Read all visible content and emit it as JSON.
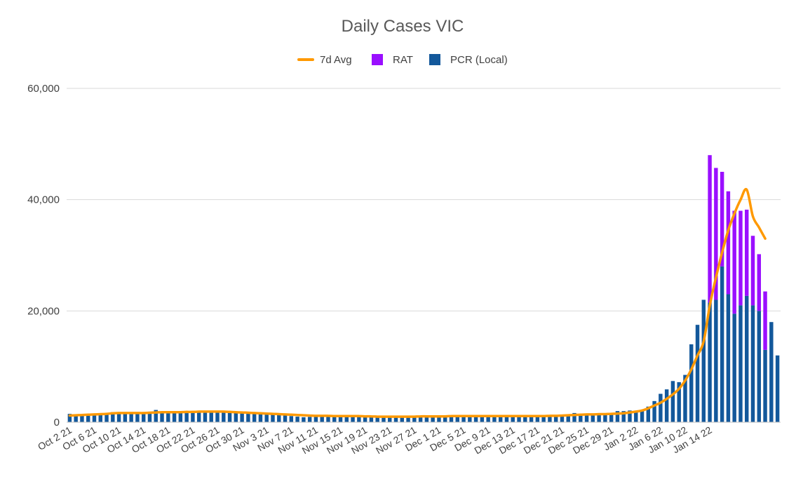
{
  "chart_data": {
    "type": "bar",
    "title": "Daily Cases VIC",
    "legend": {
      "placement": "top-center",
      "entries": [
        {
          "name": "7d Avg",
          "marker": "line",
          "color": "#FF9900"
        },
        {
          "name": "RAT",
          "marker": "square",
          "color": "#9A0FFF"
        },
        {
          "name": "PCR (Local)",
          "marker": "square",
          "color": "#13589B"
        }
      ]
    },
    "colors": {
      "pcr": "#13589B",
      "rat": "#9A0FFF",
      "avg": "#FF9900",
      "grid": "#D9D9D9",
      "axis": "#BFBFBF"
    },
    "ylim": [
      0,
      60000
    ],
    "yticks": [
      {
        "value": 0,
        "label": "0"
      },
      {
        "value": 20000,
        "label": "20,000"
      },
      {
        "value": 40000,
        "label": "40,000"
      },
      {
        "value": 60000,
        "label": "60,000"
      }
    ],
    "grid": true,
    "x_tick_labels": [
      "Oct 2 21",
      "Oct 6 21",
      "Oct 10 21",
      "Oct 14 21",
      "Oct 18 21",
      "Oct 22 21",
      "Oct 26 21",
      "Oct 30 21",
      "Nov 3 21",
      "Nov 7 21",
      "Nov 11 21",
      "Nov 15 21",
      "Nov 19 21",
      "Nov 23 21",
      "Nov 27 21",
      "Dec 1 21",
      "Dec 5 21",
      "Dec 9 21",
      "Dec 13 21",
      "Dec 17 21",
      "Dec 21 21",
      "Dec 25 21",
      "Dec 29 21",
      "Jan 2 22",
      "Jan 6 22",
      "Jan 10 22",
      "Jan 14 22"
    ],
    "x_start": "Oct 2 21",
    "x_end": "Jan 17 22",
    "series": [
      {
        "name": "PCR (Local)",
        "kind": "bar",
        "stack": "cases",
        "values": [
          1500,
          1200,
          1400,
          1500,
          1450,
          1500,
          1600,
          1800,
          1700,
          1650,
          1700,
          1700,
          1650,
          1900,
          2200,
          1800,
          1800,
          1750,
          1750,
          1800,
          1800,
          1850,
          1900,
          1800,
          1800,
          1750,
          1800,
          1700,
          1600,
          1550,
          1500,
          1450,
          1500,
          1400,
          1300,
          1250,
          1100,
          1000,
          900,
          950,
          1000,
          1000,
          950,
          1000,
          1000,
          950,
          1100,
          1000,
          1050,
          950,
          900,
          950,
          900,
          900,
          900,
          1000,
          950,
          1000,
          950,
          1050,
          1000,
          1000,
          1100,
          1050,
          1000,
          1000,
          950,
          1100,
          1050,
          1000,
          1000,
          1050,
          1000,
          1100,
          1050,
          1150,
          1050,
          1100,
          1100,
          1100,
          1200,
          1100,
          1650,
          1300,
          1300,
          1350,
          1400,
          1400,
          1400,
          2000,
          2000,
          2100,
          1900,
          2050,
          2800,
          3800,
          5100,
          5900,
          7400,
          7200,
          8500,
          14000,
          17500,
          22000,
          21500,
          22000,
          28000,
          23000,
          19500,
          21000,
          22700,
          21000,
          20000,
          13000,
          18000,
          12000
        ]
      },
      {
        "name": "RAT",
        "kind": "bar",
        "stack": "cases",
        "values": [
          0,
          0,
          0,
          0,
          0,
          0,
          0,
          0,
          0,
          0,
          0,
          0,
          0,
          0,
          0,
          0,
          0,
          0,
          0,
          0,
          0,
          0,
          0,
          0,
          0,
          0,
          0,
          0,
          0,
          0,
          0,
          0,
          0,
          0,
          0,
          0,
          0,
          0,
          0,
          0,
          0,
          0,
          0,
          0,
          0,
          0,
          0,
          0,
          0,
          0,
          0,
          0,
          0,
          0,
          0,
          0,
          0,
          0,
          0,
          0,
          0,
          0,
          0,
          0,
          0,
          0,
          0,
          0,
          0,
          0,
          0,
          0,
          0,
          0,
          0,
          0,
          0,
          0,
          0,
          0,
          0,
          0,
          0,
          0,
          0,
          0,
          0,
          0,
          0,
          0,
          0,
          0,
          0,
          0,
          0,
          0,
          0,
          0,
          0,
          0,
          0,
          0,
          0,
          0,
          26500,
          23700,
          17000,
          18500,
          18500,
          17000,
          15500,
          12500,
          10200,
          10500
        ]
      },
      {
        "name": "7d Avg",
        "kind": "line",
        "values": [
          1200,
          1250,
          1300,
          1350,
          1400,
          1450,
          1500,
          1600,
          1650,
          1650,
          1650,
          1650,
          1650,
          1700,
          1750,
          1800,
          1800,
          1800,
          1800,
          1850,
          1850,
          1900,
          1900,
          1900,
          1900,
          1900,
          1850,
          1800,
          1750,
          1700,
          1650,
          1600,
          1550,
          1500,
          1450,
          1400,
          1350,
          1300,
          1250,
          1200,
          1150,
          1150,
          1150,
          1100,
          1100,
          1100,
          1100,
          1100,
          1050,
          1050,
          1000,
          1000,
          1000,
          1000,
          1000,
          1000,
          1000,
          1050,
          1050,
          1050,
          1050,
          1050,
          1100,
          1100,
          1100,
          1100,
          1100,
          1100,
          1100,
          1100,
          1100,
          1100,
          1100,
          1100,
          1100,
          1100,
          1100,
          1100,
          1150,
          1150,
          1200,
          1250,
          1300,
          1350,
          1400,
          1400,
          1450,
          1450,
          1500,
          1550,
          1600,
          1750,
          1900,
          2100,
          2500,
          3000,
          3500,
          4200,
          5000,
          6000,
          7500,
          9500,
          12000,
          14500,
          21000,
          26000,
          30500,
          34500,
          37500,
          40000,
          41800,
          37000,
          35000,
          33000
        ]
      }
    ]
  }
}
